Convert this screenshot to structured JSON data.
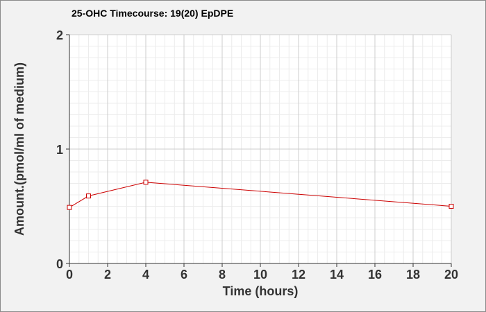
{
  "chart_data": {
    "type": "line",
    "title": "25-OHC Timecourse: 19(20) EpDPE",
    "xlabel": "Time (hours)",
    "ylabel": "Amount.(pmol/ml of medium)",
    "xlim": [
      0,
      20
    ],
    "ylim": [
      0,
      2
    ],
    "xticks": [
      0,
      2,
      4,
      6,
      8,
      10,
      12,
      14,
      16,
      18,
      20
    ],
    "yticks": [
      0,
      1,
      2
    ],
    "grid": true,
    "series": [
      {
        "color": "#cc0000",
        "marker": "square",
        "x": [
          0,
          1,
          4,
          20
        ],
        "y": [
          0.49,
          0.59,
          0.71,
          0.5
        ]
      }
    ]
  }
}
